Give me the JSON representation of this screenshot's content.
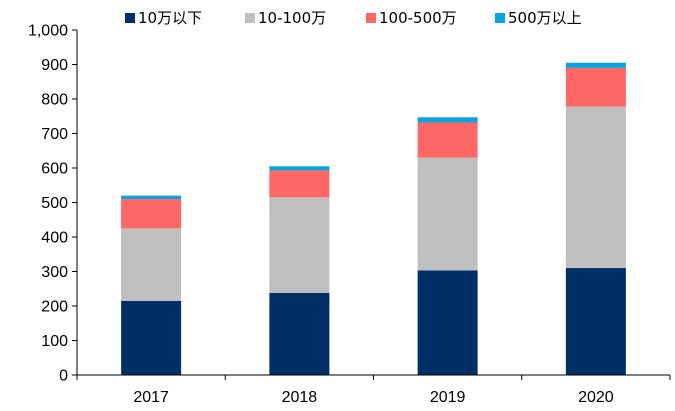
{
  "chart_data": {
    "type": "bar",
    "stacked": true,
    "categories": [
      "2017",
      "2018",
      "2019",
      "2020"
    ],
    "series": [
      {
        "name": "10万以下",
        "color": "#002F65",
        "values": [
          215,
          238,
          303,
          310
        ]
      },
      {
        "name": "10-100万",
        "color": "#BFBFBF",
        "values": [
          210,
          277,
          327,
          468
        ]
      },
      {
        "name": "100-500万",
        "color": "#FF6666",
        "values": [
          85,
          78,
          102,
          112
        ]
      },
      {
        "name": "500万以上",
        "color": "#0AA3E0",
        "values": [
          10,
          12,
          15,
          15
        ]
      }
    ],
    "yticks": [
      "0",
      "100",
      "200",
      "300",
      "400",
      "500",
      "600",
      "700",
      "800",
      "900",
      "1,000"
    ],
    "ylim": [
      0,
      1000
    ],
    "grid": false,
    "legend_position": "top"
  }
}
